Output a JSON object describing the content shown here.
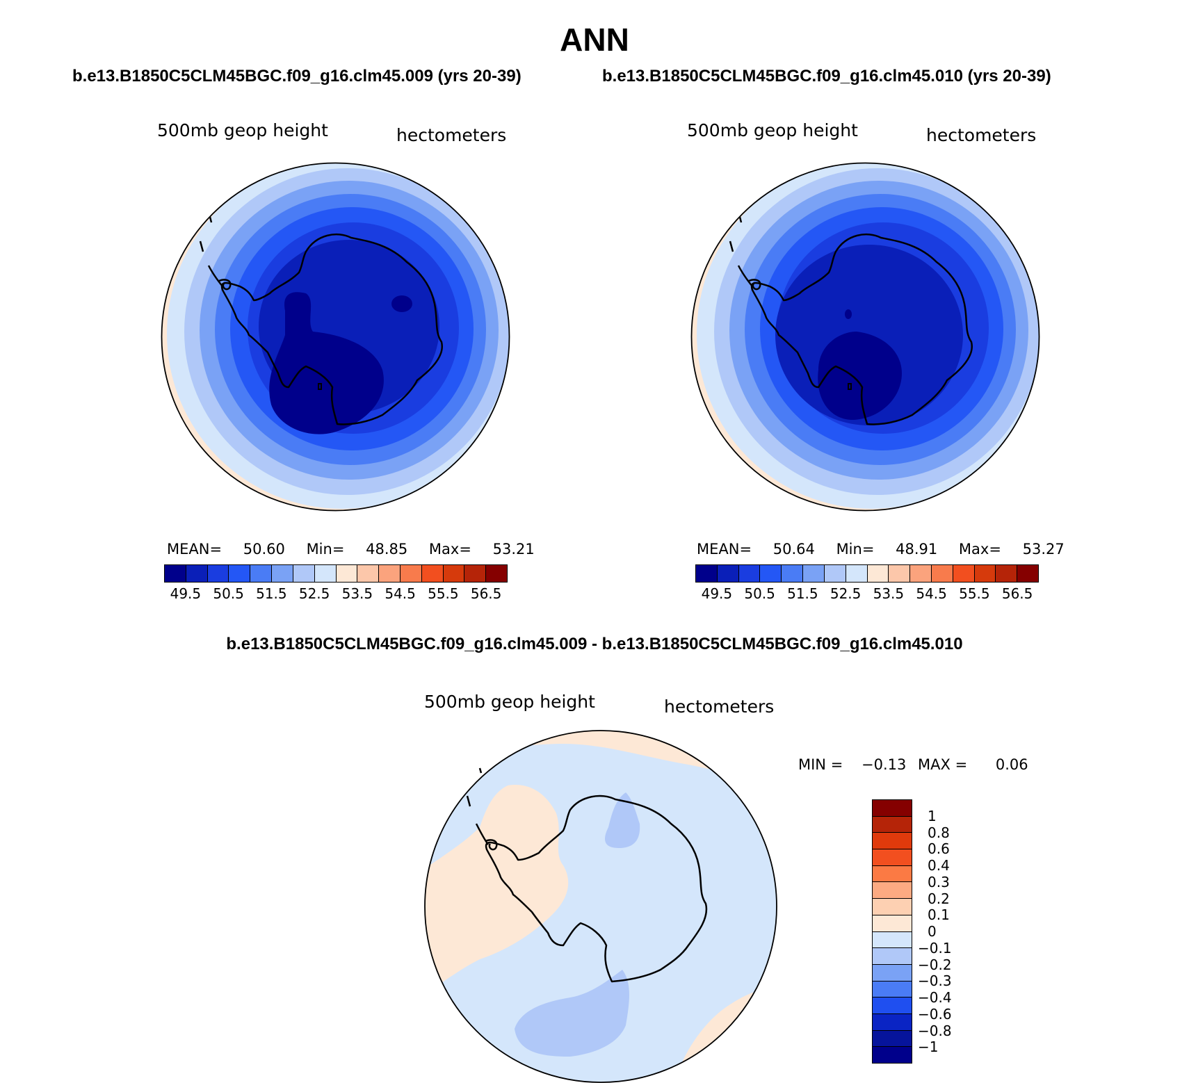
{
  "title": "ANN",
  "panel_left": {
    "case_title": "b.e13.B1850C5CLM45BGC.f09_g16.clm45.009 (yrs 20-39)",
    "variable": "500mb  geop  height",
    "units": "hectometers",
    "mean_label": "MEAN=",
    "mean": "50.60",
    "min_label": "Min=",
    "min": "48.85",
    "max_label": "Max=",
    "max": "53.21",
    "colorbar_ticks": [
      "49.5",
      "50.5",
      "51.5",
      "52.5",
      "53.5",
      "54.5",
      "55.5",
      "56.5"
    ]
  },
  "panel_right": {
    "case_title": "b.e13.B1850C5CLM45BGC.f09_g16.clm45.010 (yrs 20-39)",
    "variable": "500mb  geop  height",
    "units": "hectometers",
    "mean_label": "MEAN=",
    "mean": "50.64",
    "min_label": "Min=",
    "min": "48.91",
    "max_label": "Max=",
    "max": "53.27",
    "colorbar_ticks": [
      "49.5",
      "50.5",
      "51.5",
      "52.5",
      "53.5",
      "54.5",
      "55.5",
      "56.5"
    ]
  },
  "panel_diff": {
    "case_title": "b.e13.B1850C5CLM45BGC.f09_g16.clm45.009 - b.e13.B1850C5CLM45BGC.f09_g16.clm45.010",
    "variable": "500mb  geop  height",
    "units": "hectometers",
    "min_label": "MIN =",
    "min": "−0.13",
    "max_label": "MAX =",
    "max": "0.06",
    "colorbar_ticks": [
      "1",
      "0.8",
      "0.6",
      "0.4",
      "0.3",
      "0.2",
      "0.1",
      "0",
      "−0.1",
      "−0.2",
      "−0.3",
      "−0.4",
      "−0.6",
      "−0.8",
      "−1"
    ]
  },
  "colors": {
    "abs_scale": [
      "#00008b",
      "#0a1fb8",
      "#1a3de0",
      "#2457f5",
      "#4a7cf5",
      "#7aa2f5",
      "#b0c8f8",
      "#d4e6fb",
      "#fde8d6",
      "#fcc7aa",
      "#fba37d",
      "#f87b4c",
      "#f24f1f",
      "#d63a0c",
      "#b52408",
      "#850000"
    ],
    "diff_scale": [
      "#850000",
      "#b52408",
      "#e03a0c",
      "#f24f1f",
      "#fb7a44",
      "#fcaa82",
      "#fdd0b2",
      "#fde8d6",
      "#d4e6fb",
      "#b0c8f8",
      "#7aa2f5",
      "#4a7cf5",
      "#1f4ff0",
      "#0a24c4",
      "#06149c",
      "#00008b"
    ]
  }
}
